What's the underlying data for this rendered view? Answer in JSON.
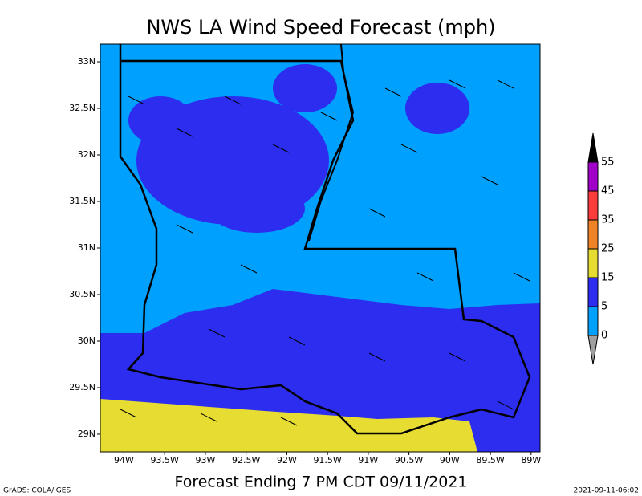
{
  "map": {
    "title": "NWS LA Wind Speed Forecast (mph)",
    "footer": "Forecast Ending 7 PM CDT 09/11/2021",
    "credit": "GrADS: COLA/IGES",
    "timestamp": "2021-09-11-06:02",
    "xlim": [
      -94.29,
      -88.89
    ],
    "ylim": [
      28.81,
      33.19
    ],
    "xticks": [
      {
        "value": -94,
        "label": "94W"
      },
      {
        "value": -93.5,
        "label": "93.5W"
      },
      {
        "value": -93,
        "label": "93W"
      },
      {
        "value": -92.5,
        "label": "92.5W"
      },
      {
        "value": -92,
        "label": "92W"
      },
      {
        "value": -91.5,
        "label": "91.5W"
      },
      {
        "value": -91,
        "label": "91W"
      },
      {
        "value": -90.5,
        "label": "90.5W"
      },
      {
        "value": -90,
        "label": "90W"
      },
      {
        "value": -89.5,
        "label": "89.5W"
      },
      {
        "value": -89,
        "label": "89W"
      }
    ],
    "yticks": [
      {
        "value": 29,
        "label": "29N"
      },
      {
        "value": 29.5,
        "label": "29.5N"
      },
      {
        "value": 30,
        "label": "30N"
      },
      {
        "value": 30.5,
        "label": "30.5N"
      },
      {
        "value": 31,
        "label": "31N"
      },
      {
        "value": 31.5,
        "label": "31.5N"
      },
      {
        "value": 32,
        "label": "32N"
      },
      {
        "value": 32.5,
        "label": "32.5N"
      },
      {
        "value": 33,
        "label": "33N"
      }
    ],
    "colorbar": {
      "levels": [
        0,
        5,
        15,
        25,
        35,
        45,
        55
      ],
      "colors": [
        "#a0a0a0",
        "#00a0ff",
        "#2d2df0",
        "#e6dc32",
        "#f08228",
        "#fa3c3c",
        "#a000c8",
        "#000000"
      ]
    }
  }
}
